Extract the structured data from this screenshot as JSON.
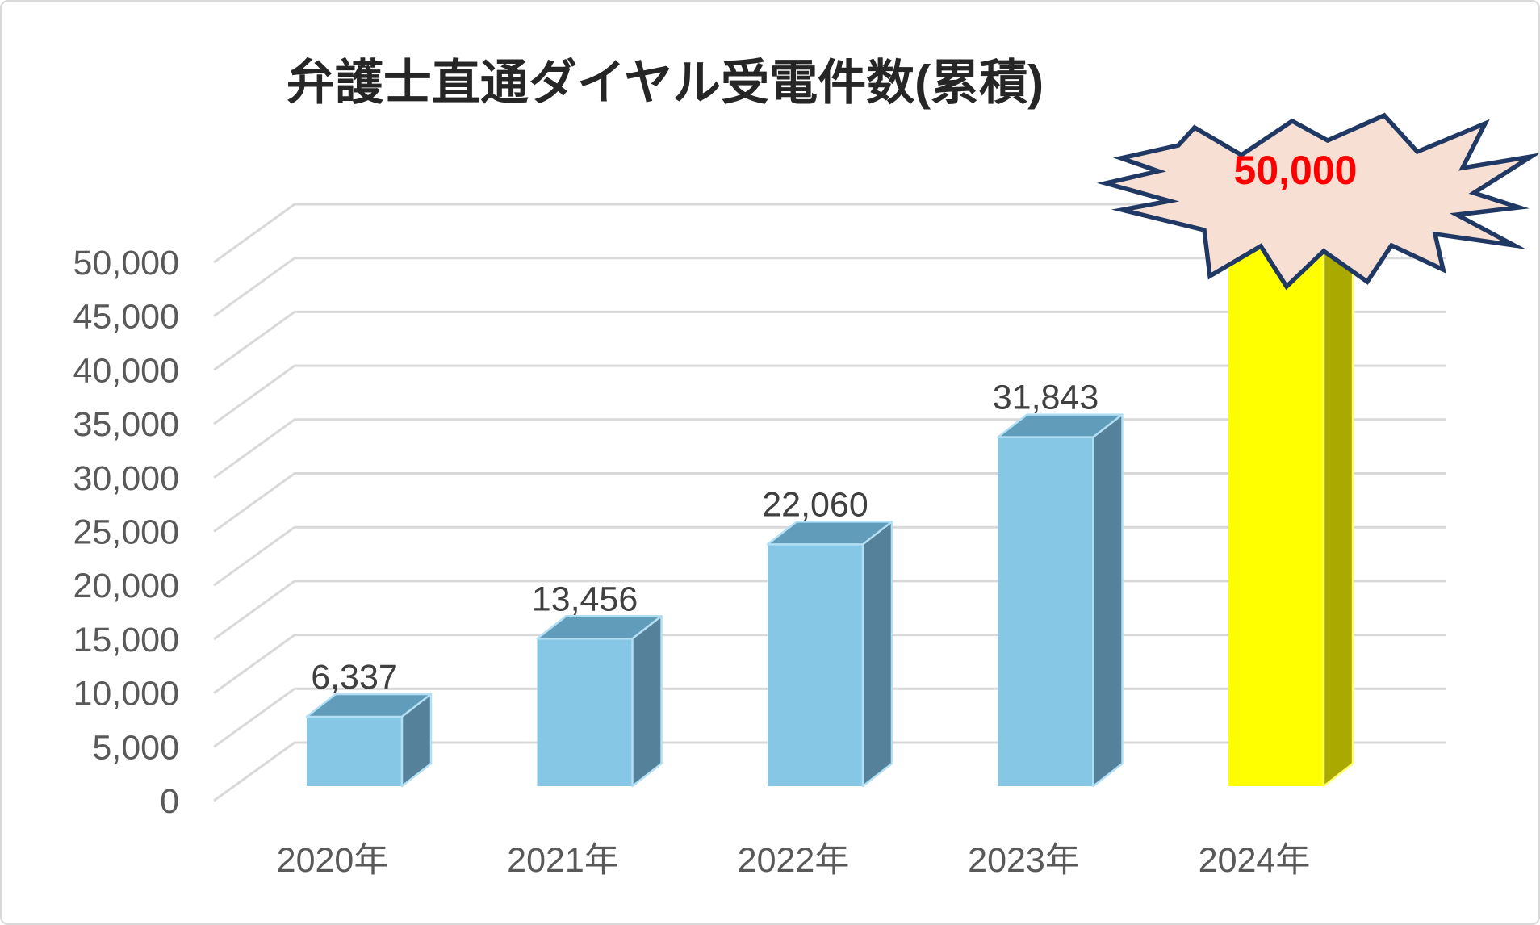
{
  "chart_data": {
    "type": "bar",
    "style": "3d-column",
    "title": "弁護士直通ダイヤル受電件数(累積)",
    "categories": [
      "2020年",
      "2021年",
      "2022年",
      "2023年",
      "2024年"
    ],
    "values": [
      6337,
      13456,
      22060,
      31843,
      50000
    ],
    "data_labels": [
      "6,337",
      "13,456",
      "22,060",
      "31,843"
    ],
    "highlight_index": 4,
    "highlight": {
      "category": "2024年",
      "label": "50,000",
      "shape": "explosion-callout"
    },
    "xlabel": "",
    "ylabel": "",
    "ylim": [
      0,
      50000
    ],
    "ytick_step": 5000,
    "ytick_labels": [
      "0",
      "5,000",
      "10,000",
      "15,000",
      "20,000",
      "25,000",
      "30,000",
      "35,000",
      "40,000",
      "45,000",
      "50,000"
    ],
    "grid": true,
    "legend": "none"
  },
  "colors": {
    "background": "#FFFFFF",
    "canvas_border": "#D9D9D9",
    "gridline": "#D9D9D9",
    "axis_label": "#595959",
    "data_label": "#404040",
    "title": "#262626",
    "bar_front": "#87C7E6",
    "bar_top": "#619CBB",
    "bar_side": "#55829A",
    "bar_edge": "#B3DFF4",
    "highlight_front": "#FFFF00",
    "highlight_top": "#ECEC00",
    "highlight_side": "#A9A900",
    "highlight_edge": "#FFFF66",
    "burst_fill": "#F8DFD3",
    "burst_border": "#1F3864",
    "burst_text": "#FF0000",
    "leader_line": "#A6A6A6"
  }
}
